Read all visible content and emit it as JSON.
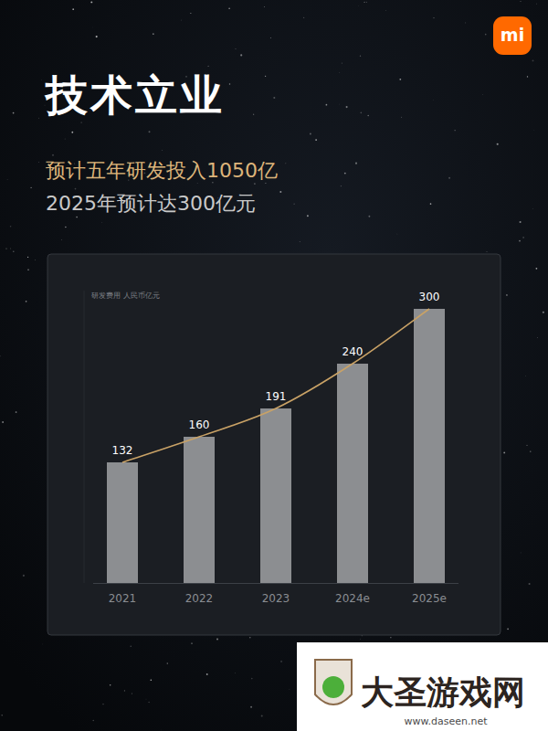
{
  "chart_data": {
    "type": "bar",
    "title": "技术立业",
    "subtitle": [
      "预计五年研发投入1050亿",
      "2025年预计达300亿元"
    ],
    "y_label": "研发费用  人民币亿元",
    "logo": "mi",
    "watermark": [
      "大圣游戏网",
      "www.daseen.net"
    ],
    "categories": [
      "2021",
      "2022",
      "2023",
      "2024e",
      "2025e"
    ],
    "series": [
      {
        "type": "bar",
        "color": "#8c8e91",
        "values": [
          132,
          160,
          191,
          240,
          300
        ]
      },
      {
        "type": "line",
        "color": "#c9a266",
        "line_style": "smooth",
        "values": [
          132,
          160,
          191,
          240,
          300
        ]
      }
    ],
    "ylim": [
      0,
      320
    ],
    "yticks": [],
    "grid": false,
    "data_labels": true,
    "tick_labels": "x"
  }
}
